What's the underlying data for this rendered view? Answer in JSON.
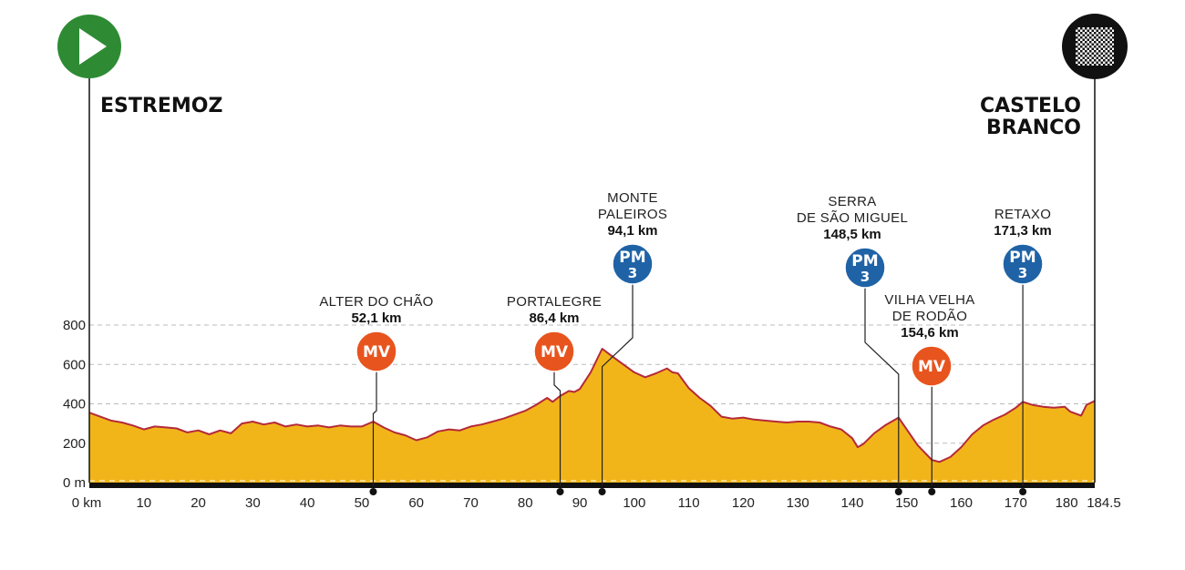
{
  "chart_data": {
    "type": "area",
    "title": "",
    "xlabel": "",
    "ylabel": "",
    "xlim": [
      0,
      184.5
    ],
    "ylim": [
      0,
      800
    ],
    "x_ticks": [
      0,
      10,
      20,
      30,
      40,
      50,
      60,
      70,
      80,
      90,
      100,
      110,
      120,
      130,
      140,
      150,
      160,
      170,
      180,
      184.5
    ],
    "x_tick_labels": [
      "0 km",
      "10",
      "20",
      "30",
      "40",
      "50",
      "60",
      "70",
      "80",
      "90",
      "100",
      "110",
      "120",
      "130",
      "140",
      "150",
      "160",
      "170",
      "180",
      "184.5"
    ],
    "y_ticks": [
      0,
      200,
      400,
      600,
      800
    ],
    "y_tick_labels": [
      "0 m",
      "200",
      "400",
      "600",
      "800"
    ],
    "grid": "dashed horizontal",
    "start": {
      "name": "ESTREMOZ",
      "km": 0,
      "icon": "play-icon"
    },
    "finish": {
      "name_lines": [
        "CASTELO",
        "BRANCO"
      ],
      "km": 184.5,
      "icon": "checkered-flag-icon"
    },
    "profile": [
      [
        0,
        355
      ],
      [
        2,
        335
      ],
      [
        4,
        315
      ],
      [
        6,
        305
      ],
      [
        8,
        290
      ],
      [
        10,
        270
      ],
      [
        12,
        285
      ],
      [
        14,
        280
      ],
      [
        16,
        275
      ],
      [
        18,
        255
      ],
      [
        20,
        265
      ],
      [
        22,
        245
      ],
      [
        24,
        265
      ],
      [
        26,
        250
      ],
      [
        28,
        300
      ],
      [
        30,
        310
      ],
      [
        32,
        295
      ],
      [
        34,
        305
      ],
      [
        36,
        285
      ],
      [
        38,
        295
      ],
      [
        40,
        285
      ],
      [
        42,
        290
      ],
      [
        44,
        280
      ],
      [
        46,
        290
      ],
      [
        48,
        285
      ],
      [
        50,
        285
      ],
      [
        52.1,
        310
      ],
      [
        54,
        280
      ],
      [
        56,
        255
      ],
      [
        58,
        240
      ],
      [
        60,
        215
      ],
      [
        62,
        230
      ],
      [
        64,
        260
      ],
      [
        66,
        270
      ],
      [
        68,
        265
      ],
      [
        70,
        285
      ],
      [
        72,
        295
      ],
      [
        74,
        310
      ],
      [
        76,
        325
      ],
      [
        78,
        345
      ],
      [
        80,
        365
      ],
      [
        82,
        395
      ],
      [
        84,
        430
      ],
      [
        85,
        410
      ],
      [
        86.4,
        440
      ],
      [
        88,
        465
      ],
      [
        89,
        460
      ],
      [
        90,
        475
      ],
      [
        92,
        560
      ],
      [
        94.1,
        680
      ],
      [
        96,
        640
      ],
      [
        98,
        600
      ],
      [
        100,
        560
      ],
      [
        102,
        535
      ],
      [
        104,
        555
      ],
      [
        106,
        580
      ],
      [
        107,
        560
      ],
      [
        108,
        555
      ],
      [
        110,
        480
      ],
      [
        112,
        430
      ],
      [
        114,
        390
      ],
      [
        116,
        335
      ],
      [
        118,
        325
      ],
      [
        120,
        330
      ],
      [
        122,
        320
      ],
      [
        124,
        315
      ],
      [
        126,
        310
      ],
      [
        128,
        305
      ],
      [
        130,
        310
      ],
      [
        132,
        310
      ],
      [
        134,
        305
      ],
      [
        136,
        285
      ],
      [
        138,
        270
      ],
      [
        140,
        225
      ],
      [
        141,
        180
      ],
      [
        142,
        195
      ],
      [
        144,
        250
      ],
      [
        146,
        290
      ],
      [
        148.5,
        330
      ],
      [
        150,
        270
      ],
      [
        152,
        190
      ],
      [
        154.6,
        115
      ],
      [
        156,
        105
      ],
      [
        158,
        130
      ],
      [
        160,
        180
      ],
      [
        162,
        245
      ],
      [
        164,
        290
      ],
      [
        166,
        320
      ],
      [
        168,
        345
      ],
      [
        170,
        380
      ],
      [
        171.3,
        410
      ],
      [
        173,
        395
      ],
      [
        175,
        385
      ],
      [
        177,
        380
      ],
      [
        179,
        385
      ],
      [
        180,
        360
      ],
      [
        182,
        340
      ],
      [
        183,
        395
      ],
      [
        184.5,
        415
      ]
    ],
    "climbs": [
      {
        "name_lines": [
          "ALTER DO CHÃO"
        ],
        "km": 52.1,
        "km_label": "52,1 km",
        "type": "MV",
        "category": "",
        "color": "#e8541e"
      },
      {
        "name_lines": [
          "PORTALEGRE"
        ],
        "km": 86.4,
        "km_label": "86,4 km",
        "type": "MV",
        "category": "",
        "color": "#e8541e"
      },
      {
        "name_lines": [
          "MONTE",
          "PALEIROS"
        ],
        "km": 94.1,
        "km_label": "94,1 km",
        "type": "PM",
        "category": "3",
        "color": "#1f63a6"
      },
      {
        "name_lines": [
          "SERRA",
          "DE SÃO MIGUEL"
        ],
        "km": 148.5,
        "km_label": "148,5 km",
        "type": "PM",
        "category": "3",
        "color": "#1f63a6"
      },
      {
        "name_lines": [
          "VILHA VELHA",
          "DE RODÃO"
        ],
        "km": 154.6,
        "km_label": "154,6 km",
        "type": "MV",
        "category": "",
        "color": "#e8541e"
      },
      {
        "name_lines": [
          "RETAXO"
        ],
        "km": 171.3,
        "km_label": "171,3 km",
        "type": "PM",
        "category": "3",
        "color": "#1f63a6"
      }
    ],
    "colors": {
      "fill": "#f2b519",
      "fill_dark": "#e3a10f",
      "line": "#b42a3a",
      "start": "#2e8b34",
      "finish": "#111111",
      "mv": "#e8541e",
      "pm": "#1f63a6"
    }
  }
}
